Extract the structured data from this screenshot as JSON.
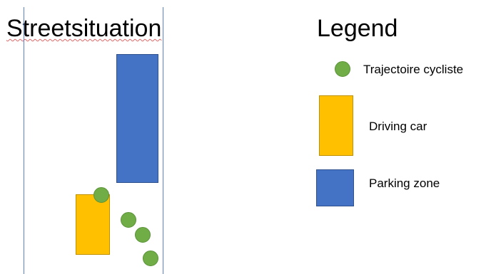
{
  "diagram": {
    "title": "Streetsituation",
    "legend": {
      "title": "Legend",
      "items": [
        {
          "label": "Trajectoire cycliste",
          "shape": "dot",
          "color": "#70ad47"
        },
        {
          "label": "Driving car",
          "shape": "rect",
          "color": "#ffc000"
        },
        {
          "label": "Parking zone",
          "shape": "rect",
          "color": "#4472c4"
        }
      ]
    },
    "colors": {
      "cyclist": "#70ad47",
      "car": "#ffc000",
      "parking": "#4472c4",
      "lane_line": "#5b7fd1"
    }
  }
}
